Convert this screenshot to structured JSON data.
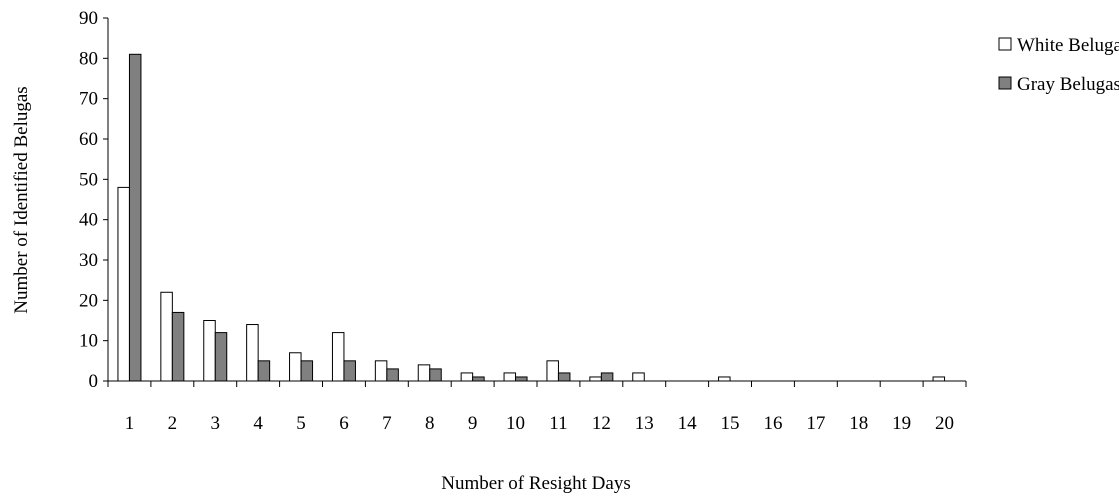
{
  "chart_data": {
    "type": "bar",
    "title": "",
    "xlabel": "Number of Resight Days",
    "ylabel": "Number of Identified Belugas",
    "categories": [
      "1",
      "2",
      "3",
      "4",
      "5",
      "6",
      "7",
      "8",
      "9",
      "10",
      "11",
      "12",
      "13",
      "14",
      "15",
      "16",
      "17",
      "18",
      "19",
      "20"
    ],
    "series": [
      {
        "name": "White Belugas",
        "color": "#ffffff",
        "values": [
          48,
          22,
          15,
          14,
          7,
          12,
          5,
          4,
          2,
          2,
          5,
          1,
          2,
          0,
          1,
          0,
          0,
          0,
          0,
          1
        ]
      },
      {
        "name": "Gray Belugas",
        "color": "#808080",
        "values": [
          81,
          17,
          12,
          5,
          5,
          5,
          3,
          3,
          1,
          1,
          2,
          2,
          0,
          0,
          0,
          0,
          0,
          0,
          0,
          0
        ]
      }
    ],
    "ylim": [
      0,
      90
    ],
    "yticks": [
      0,
      10,
      20,
      30,
      40,
      50,
      60,
      70,
      80,
      90
    ],
    "grid": false,
    "legend_position": "top-right"
  }
}
